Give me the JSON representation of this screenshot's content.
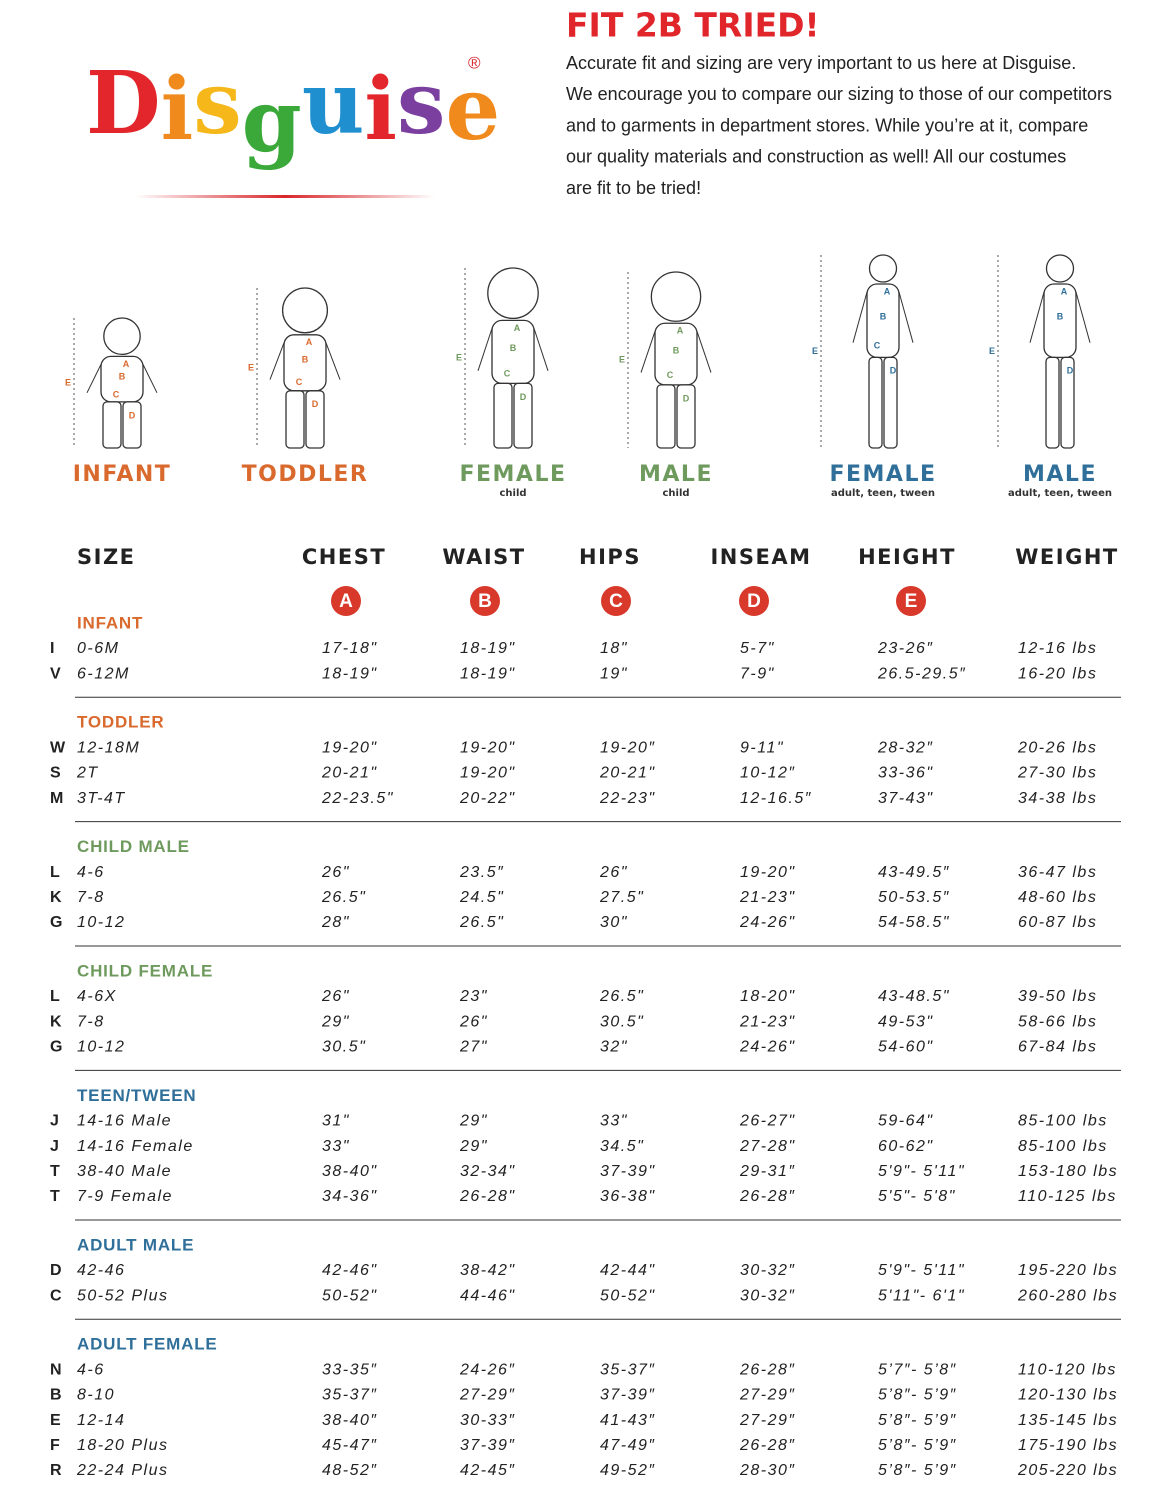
{
  "header": {
    "logo": "Disguise",
    "registered": "®",
    "title": "FIT 2B TRIED!",
    "intro": [
      "Accurate fit and sizing are very important to us here at Disguise.",
      "We encourage you to compare our sizing to those of our competitors",
      "and to garments in department stores. While you’re at it, compare",
      "our quality materials and construction as well! All our costumes",
      "are fit to be tried!"
    ]
  },
  "figures": [
    {
      "label": "INFANT",
      "marks": [
        "A",
        "B",
        "C",
        "D",
        "E"
      ]
    },
    {
      "label": "TODDLER",
      "marks": [
        "A",
        "B",
        "C",
        "D",
        "E"
      ]
    },
    {
      "label": "FEMALE",
      "sub": "child",
      "marks": [
        "A",
        "B",
        "C",
        "D",
        "E"
      ]
    },
    {
      "label": "MALE",
      "sub": "child",
      "marks": [
        "A",
        "B",
        "C",
        "D",
        "E"
      ]
    },
    {
      "label": "FEMALE",
      "sub": "adult, teen, tween",
      "marks": [
        "A",
        "B",
        "C",
        "D",
        "E"
      ]
    },
    {
      "label": "MALE",
      "sub": "adult, teen, tween",
      "marks": [
        "A",
        "B",
        "D",
        "E"
      ]
    }
  ],
  "table": {
    "columns": [
      "SIZE",
      "CHEST",
      "WAIST",
      "HIPS",
      "INSEAM",
      "HEIGHT",
      "WEIGHT"
    ],
    "keys": [
      "A",
      "B",
      "C",
      "D",
      "E"
    ],
    "groups": [
      {
        "name": "INFANT",
        "rows": [
          [
            "I",
            "0-6M",
            "17-18\"",
            "18-19\"",
            "18\"",
            "5-7\"",
            "23-26″",
            "12-16 lbs"
          ],
          [
            "V",
            "6-12M",
            "18-19\"",
            "18-19\"",
            "19\"",
            "7-9\"",
            "26.5-29.5″",
            "16-20 lbs"
          ]
        ]
      },
      {
        "name": "TODDLER",
        "rows": [
          [
            "W",
            "12-18M",
            "19-20\"",
            "19-20\"",
            "19-20″",
            "9-11\"",
            "28-32″",
            "20-26 lbs"
          ],
          [
            "S",
            "2T",
            "20-21\"",
            "19-20\"",
            "20-21\"",
            "10-12″",
            "33-36\"",
            "27-30 lbs"
          ],
          [
            "M",
            "3T-4T",
            "22-23.5\"",
            "20-22\"",
            "22-23\"",
            "12-16.5″",
            "37-43\"",
            "34-38 lbs"
          ]
        ]
      },
      {
        "name": "CHILD MALE",
        "rows": [
          [
            "L",
            "4-6",
            "26\"",
            "23.5″",
            "26\"",
            "19-20\"",
            "43-49.5″",
            "36-47 lbs"
          ],
          [
            "K",
            "7-8",
            "26.5\"",
            "24.5\"",
            "27.5\"",
            "21-23\"",
            "50-53.5″",
            "48-60 lbs"
          ],
          [
            "G",
            "10-12",
            "28\"",
            "26.5\"",
            "30\"",
            "24-26\"",
            "54-58.5\"",
            "60-87 lbs"
          ]
        ]
      },
      {
        "name": "CHILD FEMALE",
        "rows": [
          [
            "L",
            "4-6X",
            "26\"",
            "23\"",
            "26.5\"",
            "18-20\"",
            "43-48.5\"",
            "39-50 lbs"
          ],
          [
            "K",
            "7-8",
            "29\"",
            "26\"",
            "30.5\"",
            "21-23\"",
            "49-53\"",
            "58-66 lbs"
          ],
          [
            "G",
            "10-12",
            "30.5\"",
            "27\"",
            "32\"",
            "24-26\"",
            "54-60\"",
            "67-84 lbs"
          ]
        ]
      },
      {
        "name": "TEEN/TWEEN",
        "rows": [
          [
            "J",
            "14-16 Male",
            "31\"",
            "29\"",
            "33\"",
            "26-27\"",
            "59-64\"",
            "85-100 lbs"
          ],
          [
            "J",
            "14-16 Female",
            "33\"",
            "29\"",
            "34.5\"",
            "27-28\"",
            "60-62\"",
            "85-100 lbs"
          ],
          [
            "T",
            "38-40 Male",
            "38-40\"",
            "32-34\"",
            "37-39\"",
            "29-31″",
            "5'9\"- 5'11\"",
            "153-180 lbs"
          ],
          [
            "T",
            "7-9 Female",
            "34-36\"",
            "26-28\"",
            "36-38\"",
            "26-28″",
            "5'5\"- 5'8\"",
            "110-125 lbs"
          ]
        ]
      },
      {
        "name": "ADULT MALE",
        "rows": [
          [
            "D",
            "42-46",
            "42-46\"",
            "38-42\"",
            "42-44\"",
            "30-32″",
            "5'9\"- 5'11\"",
            "195-220 lbs"
          ],
          [
            "C",
            "50-52 Plus",
            "50-52\"",
            "44-46\"",
            "50-52\"",
            "30-32″",
            "5'11\"- 6'1\"",
            "260-280 lbs"
          ]
        ]
      },
      {
        "name": "ADULT FEMALE",
        "rows": [
          [
            "N",
            "4-6",
            "33-35″",
            "24-26″",
            "35-37″",
            "26-28″",
            "5’7″- 5’8″",
            "110-120 lbs"
          ],
          [
            "B",
            "8-10",
            "35-37″",
            "27-29″",
            "37-39″",
            "27-29″",
            "5’8″- 5’9″",
            "120-130 lbs"
          ],
          [
            "E",
            "12-14",
            "38-40″",
            "30-33″",
            "41-43″",
            "27-29″",
            "5’8″- 5’9″",
            "135-145 lbs"
          ],
          [
            "F",
            "18-20 Plus",
            "45-47″",
            "37-39″",
            "47-49″",
            "26-28″",
            "5’8″- 5’9″",
            "175-190 lbs"
          ],
          [
            "R",
            "22-24 Plus",
            "48-52″",
            "42-45″",
            "49-52″",
            "28-30″",
            "5’8″- 5’9″",
            "205-220 lbs"
          ]
        ]
      }
    ]
  }
}
